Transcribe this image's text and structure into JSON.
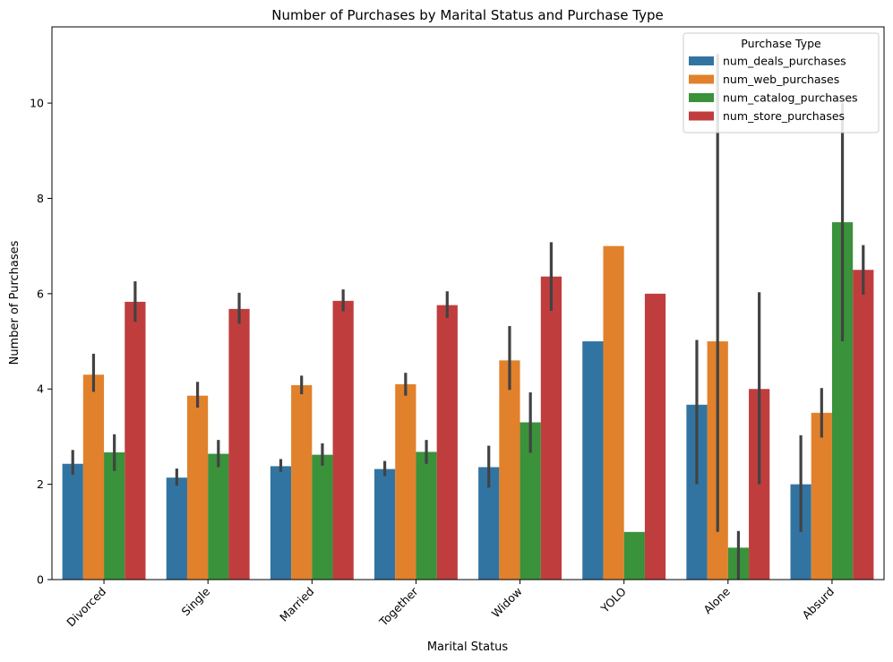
{
  "chart_data": {
    "type": "bar",
    "title": "Number of Purchases by Marital Status and Purchase Type",
    "xlabel": "Marital Status",
    "ylabel": "Number of Purchases",
    "ylim": [
      0,
      11.6
    ],
    "yticks": [
      0,
      2,
      4,
      6,
      8,
      10
    ],
    "grid": false,
    "legend_title": "Purchase Type",
    "legend_position": "top-right",
    "categories": [
      "Divorced",
      "Single",
      "Married",
      "Together",
      "Widow",
      "YOLO",
      "Alone",
      "Absurd"
    ],
    "series": [
      {
        "name": "num_deals_purchases",
        "color": "#3274a1",
        "values": [
          2.43,
          2.14,
          2.38,
          2.32,
          2.36,
          5.0,
          3.67,
          2.0
        ],
        "ci_low": [
          2.2,
          1.97,
          2.26,
          2.17,
          1.93,
          5.0,
          2.0,
          1.0
        ],
        "ci_high": [
          2.72,
          2.33,
          2.53,
          2.49,
          2.81,
          5.0,
          5.03,
          3.03
        ]
      },
      {
        "name": "num_web_purchases",
        "color": "#e1812c",
        "values": [
          4.3,
          3.86,
          4.08,
          4.1,
          4.6,
          7.0,
          5.0,
          3.5
        ],
        "ci_low": [
          3.94,
          3.61,
          3.89,
          3.86,
          3.98,
          7.0,
          1.0,
          2.98
        ],
        "ci_high": [
          4.74,
          4.15,
          4.28,
          4.34,
          5.32,
          7.0,
          11.03,
          4.02
        ]
      },
      {
        "name": "num_catalog_purchases",
        "color": "#3a923a",
        "values": [
          2.67,
          2.64,
          2.62,
          2.68,
          3.3,
          1.0,
          0.67,
          7.5
        ],
        "ci_low": [
          2.28,
          2.36,
          2.39,
          2.43,
          2.66,
          1.0,
          0.0,
          5.0
        ],
        "ci_high": [
          3.05,
          2.93,
          2.86,
          2.93,
          3.93,
          1.0,
          1.02,
          10.0
        ]
      },
      {
        "name": "num_store_purchases",
        "color": "#c03d3e",
        "values": [
          5.83,
          5.68,
          5.85,
          5.76,
          6.36,
          6.0,
          4.0,
          6.5
        ],
        "ci_low": [
          5.41,
          5.37,
          5.63,
          5.49,
          5.64,
          6.0,
          2.0,
          5.98
        ],
        "ci_high": [
          6.26,
          6.02,
          6.09,
          6.05,
          7.08,
          6.0,
          6.03,
          7.02
        ]
      }
    ]
  }
}
